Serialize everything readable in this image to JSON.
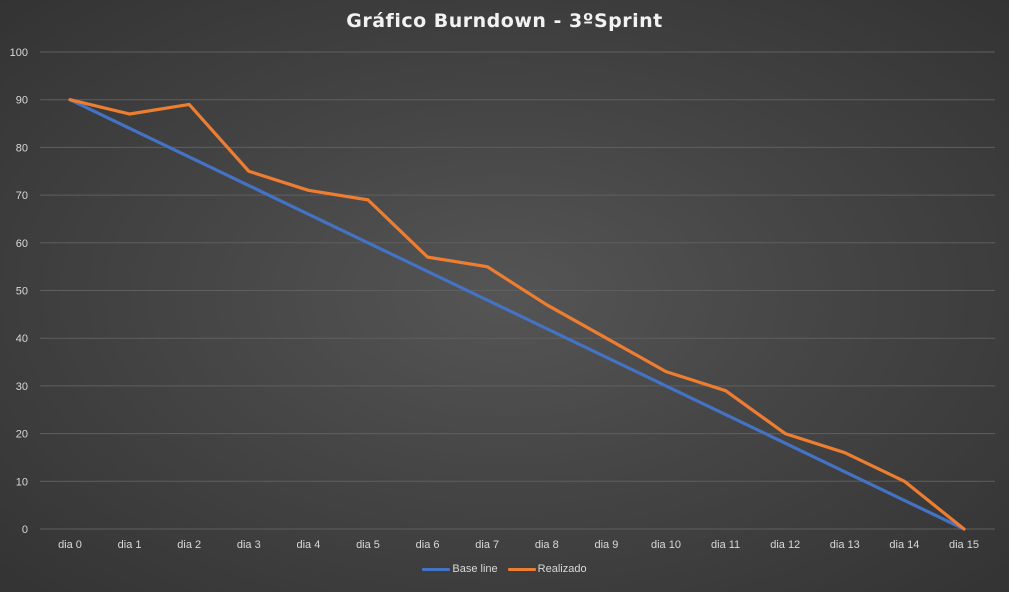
{
  "chart_data": {
    "type": "line",
    "title": "Gráfico Burndown - 3ºSprint",
    "categories": [
      "dia 0",
      "dia 1",
      "dia 2",
      "dia 3",
      "dia 4",
      "dia 5",
      "dia 6",
      "dia 7",
      "dia 8",
      "dia 9",
      "dia 10",
      "dia 11",
      "dia 12",
      "dia 13",
      "dia 14",
      "dia 15"
    ],
    "series": [
      {
        "name": "Base line",
        "color": "#4472c4",
        "values": [
          90,
          84,
          78,
          72,
          66,
          60,
          54,
          48,
          42,
          36,
          30,
          24,
          18,
          12,
          6,
          0
        ]
      },
      {
        "name": "Realizado",
        "color": "#ed7d31",
        "values": [
          90,
          87,
          89,
          75,
          71,
          69,
          57,
          55,
          47,
          40,
          33,
          29,
          20,
          16,
          10,
          0
        ]
      }
    ],
    "ylim": [
      0,
      100
    ],
    "yticks": [
      0,
      10,
      20,
      30,
      40,
      50,
      60,
      70,
      80,
      90,
      100
    ],
    "grid": true,
    "legend_position": "bottom"
  }
}
